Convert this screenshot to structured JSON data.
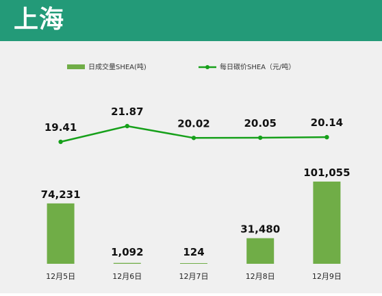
{
  "header": {
    "title": "上海"
  },
  "chart_data": {
    "type": "bar",
    "categories": [
      "12月5日",
      "12月6日",
      "12月7日",
      "12月8日",
      "12月9日"
    ],
    "series": [
      {
        "name": "日成交量SHEA(吨)",
        "type": "bar",
        "values": [
          74231,
          1092,
          124,
          31480,
          101055
        ],
        "labels": [
          "74,231",
          "1,092",
          "124",
          "31,480",
          "101,055"
        ],
        "color": "#70ad47"
      },
      {
        "name": "每日碳价SHEA（元/吨）",
        "type": "line",
        "values": [
          19.41,
          21.87,
          20.02,
          20.05,
          20.14
        ],
        "labels": [
          "19.41",
          "21.87",
          "20.02",
          "20.05",
          "20.14"
        ],
        "color": "#16a01a"
      }
    ],
    "legend_position": "top",
    "grid": false
  }
}
